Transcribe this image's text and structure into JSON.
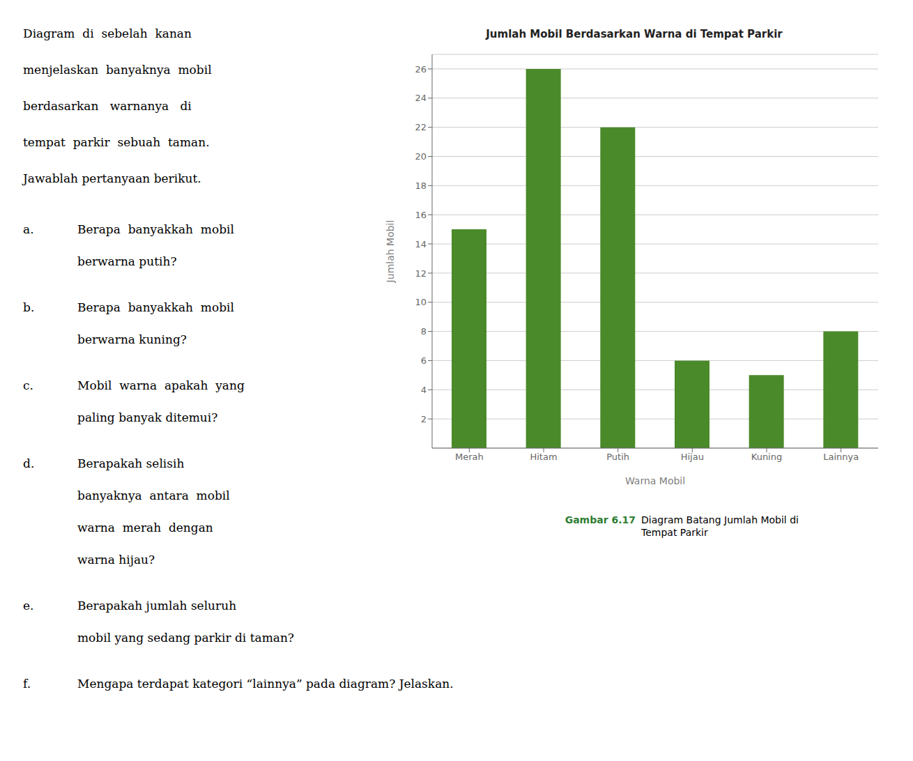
{
  "chart_data": {
    "type": "bar",
    "title": "Jumlah Mobil Berdasarkan Warna di Tempat Parkir",
    "categories": [
      "Merah",
      "Hitam",
      "Putih",
      "Hijau",
      "Kuning",
      "Lainnya"
    ],
    "values": [
      15,
      26,
      22,
      6,
      5,
      8
    ],
    "color": "#4a8a2a",
    "xlabel": "Warna Mobil",
    "ylabel": "Jumlah Mobil",
    "ylim": [
      0,
      27
    ],
    "yticks": [
      2,
      4,
      6,
      8,
      10,
      12,
      14,
      16,
      18,
      20,
      22,
      24,
      26
    ],
    "grid": true,
    "annotations": [
      {
        "text": "Diagram  di  sebelah  kanan\nmenjelaskan  banyaknya  mobil\nberdasarkan   warnanya   di\ntempat  parkir  sebuah  taman.\nJawablah pertanyaan berikut."
      },
      {
        "label": "a.",
        "text": "Berapa  banyakkah  mobil\nberwarna putih?"
      },
      {
        "label": "b.",
        "text": "Berapa  banyakkah  mobil\nberwarna kuning?"
      },
      {
        "label": "c.",
        "text": "Mobil  warna  apakah  yang\npaling banyak ditemui?"
      },
      {
        "label": "d.",
        "text": "Berapakah selisih\nbanyaknya  antara  mobil\nwarna  merah  dengan\nwarna hijau?"
      },
      {
        "label": "e.",
        "text": "Berapakah jumlah seluruh\nmobil yang sedang parkir di taman?"
      },
      {
        "label": "f.",
        "text": "Mengapa terdapat kategori “lainnya” pada diagram? Jelaskan."
      },
      {
        "label": "Gambar 6.17",
        "text": "Diagram Batang Jumlah Mobil di\nTempat Parkir",
        "color": "#2e7d32"
      }
    ]
  }
}
